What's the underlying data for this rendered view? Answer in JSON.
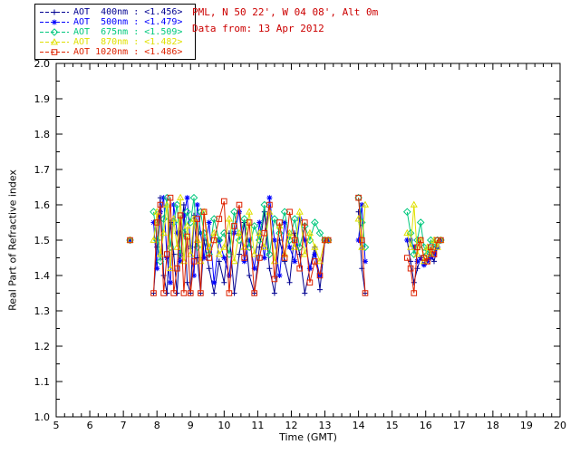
{
  "header": {
    "location_line": "PML, N 50 22', W 04 08', Alt 0m",
    "date_line": "Data from: 13 Apr 2012",
    "text_color": "#cc0000"
  },
  "chart_data": {
    "type": "line",
    "title": "",
    "xlabel": "Time (GMT)",
    "ylabel": "Real Part of Refractive index",
    "xlim": [
      5,
      20
    ],
    "ylim": [
      1.0,
      2.0
    ],
    "xticks": [
      5,
      6,
      7,
      8,
      9,
      10,
      11,
      12,
      13,
      14,
      15,
      16,
      17,
      18,
      19,
      20
    ],
    "yticks": [
      1.0,
      1.1,
      1.2,
      1.3,
      1.4,
      1.5,
      1.6,
      1.7,
      1.8,
      1.9,
      2.0
    ],
    "grid": false,
    "legend_position": "outside-top-left",
    "x": [
      7.2,
      7.9,
      8.0,
      8.1,
      8.2,
      8.3,
      8.4,
      8.5,
      8.6,
      8.7,
      8.8,
      8.9,
      9.0,
      9.1,
      9.2,
      9.3,
      9.4,
      9.55,
      9.7,
      9.85,
      10.0,
      10.15,
      10.3,
      10.45,
      10.6,
      10.75,
      10.9,
      11.05,
      11.2,
      11.35,
      11.5,
      11.65,
      11.8,
      11.95,
      12.1,
      12.25,
      12.4,
      12.55,
      12.7,
      12.85,
      13.0,
      13.1,
      14.0,
      14.1,
      14.2,
      15.45,
      15.55,
      15.65,
      15.75,
      15.85,
      15.95,
      16.05,
      16.15,
      16.25,
      16.35,
      16.45
    ],
    "series": [
      {
        "id": "aot-400nm",
        "name": "AOT 400nm",
        "legend_label": "AOT  400nm : <1.456>",
        "mean_refractive_index": 1.456,
        "color": "#000090",
        "marker": "plus",
        "values": [
          1.5,
          1.35,
          1.48,
          1.62,
          1.4,
          1.35,
          1.55,
          1.46,
          1.35,
          1.52,
          1.6,
          1.38,
          1.35,
          1.57,
          1.45,
          1.35,
          1.5,
          1.42,
          1.35,
          1.44,
          1.38,
          1.52,
          1.35,
          1.46,
          1.55,
          1.4,
          1.35,
          1.48,
          1.58,
          1.42,
          1.35,
          1.5,
          1.44,
          1.38,
          1.52,
          1.46,
          1.35,
          1.42,
          1.48,
          1.36,
          1.5,
          1.5,
          1.58,
          1.42,
          1.35,
          1.5,
          1.44,
          1.38,
          1.42,
          1.45,
          1.43,
          1.44,
          1.46,
          1.44,
          1.48,
          1.5
        ]
      },
      {
        "id": "aot-500nm",
        "name": "AOT 500nm",
        "legend_label": "AOT  500nm : <1.479>",
        "mean_refractive_index": 1.479,
        "color": "#0000ff",
        "marker": "asterisk",
        "values": [
          1.5,
          1.55,
          1.42,
          1.58,
          1.62,
          1.45,
          1.38,
          1.6,
          1.52,
          1.44,
          1.57,
          1.62,
          1.48,
          1.4,
          1.6,
          1.52,
          1.45,
          1.55,
          1.38,
          1.5,
          1.45,
          1.4,
          1.52,
          1.58,
          1.44,
          1.5,
          1.42,
          1.55,
          1.45,
          1.62,
          1.5,
          1.4,
          1.55,
          1.48,
          1.44,
          1.56,
          1.5,
          1.42,
          1.46,
          1.4,
          1.5,
          1.5,
          1.5,
          1.6,
          1.44,
          1.5,
          1.5,
          1.48,
          1.44,
          1.45,
          1.43,
          1.44,
          1.45,
          1.46,
          1.48,
          1.5
        ]
      },
      {
        "id": "aot-675nm",
        "name": "AOT 675nm",
        "legend_label": "AOT  675nm : <1.509>",
        "mean_refractive_index": 1.509,
        "color": "#00c87d",
        "marker": "diamond",
        "values": [
          1.5,
          1.58,
          1.5,
          1.44,
          1.56,
          1.62,
          1.48,
          1.55,
          1.6,
          1.46,
          1.52,
          1.58,
          1.55,
          1.62,
          1.48,
          1.58,
          1.52,
          1.46,
          1.56,
          1.5,
          1.52,
          1.46,
          1.58,
          1.5,
          1.56,
          1.48,
          1.54,
          1.5,
          1.6,
          1.46,
          1.56,
          1.52,
          1.58,
          1.5,
          1.56,
          1.48,
          1.54,
          1.5,
          1.55,
          1.52,
          1.5,
          1.5,
          1.62,
          1.55,
          1.48,
          1.58,
          1.52,
          1.46,
          1.5,
          1.55,
          1.48,
          1.46,
          1.5,
          1.48,
          1.5,
          1.5
        ]
      },
      {
        "id": "aot-870nm",
        "name": "AOT 870nm",
        "legend_label": "AOT  870nm : <1.482>",
        "mean_refractive_index": 1.482,
        "color": "#e0e000",
        "marker": "triangle",
        "values": [
          1.5,
          1.5,
          1.58,
          1.46,
          1.52,
          1.6,
          1.42,
          1.56,
          1.48,
          1.62,
          1.44,
          1.54,
          1.46,
          1.56,
          1.5,
          1.44,
          1.58,
          1.48,
          1.52,
          1.46,
          1.48,
          1.56,
          1.44,
          1.52,
          1.48,
          1.58,
          1.46,
          1.52,
          1.48,
          1.58,
          1.44,
          1.54,
          1.46,
          1.52,
          1.48,
          1.58,
          1.46,
          1.52,
          1.48,
          1.44,
          1.5,
          1.5,
          1.56,
          1.48,
          1.6,
          1.52,
          1.48,
          1.6,
          1.46,
          1.5,
          1.44,
          1.48,
          1.46,
          1.5,
          1.48,
          1.5
        ]
      },
      {
        "id": "aot-1020nm",
        "name": "AOT 1020nm",
        "legend_label": "AOT 1020nm : <1.486>",
        "mean_refractive_index": 1.486,
        "color": "#dd2200",
        "marker": "square",
        "values": [
          1.5,
          1.35,
          1.55,
          1.6,
          1.35,
          1.46,
          1.62,
          1.35,
          1.42,
          1.57,
          1.35,
          1.51,
          1.35,
          1.44,
          1.56,
          1.35,
          1.58,
          1.45,
          1.5,
          1.56,
          1.61,
          1.35,
          1.54,
          1.6,
          1.45,
          1.55,
          1.35,
          1.45,
          1.52,
          1.6,
          1.39,
          1.55,
          1.45,
          1.58,
          1.5,
          1.42,
          1.55,
          1.38,
          1.44,
          1.4,
          1.5,
          1.5,
          1.62,
          1.5,
          1.35,
          1.45,
          1.42,
          1.35,
          1.48,
          1.5,
          1.45,
          1.44,
          1.48,
          1.46,
          1.5,
          1.5
        ]
      }
    ]
  }
}
